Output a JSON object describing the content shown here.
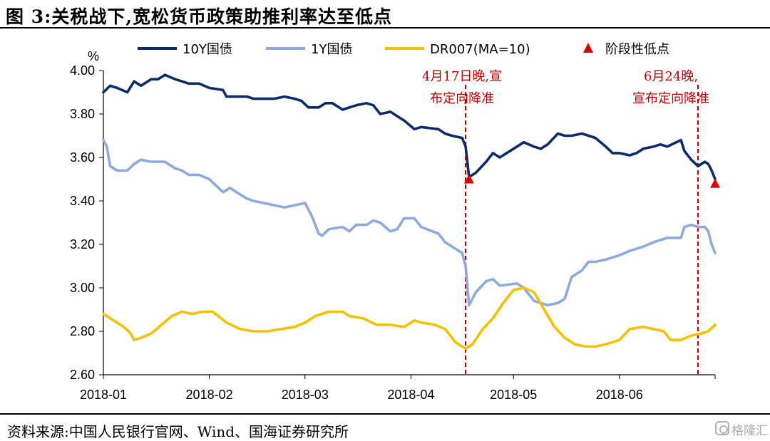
{
  "figure": {
    "title": "图 3:关税战下,宽松货币政策助推利率达至低点",
    "source": "资料来源:中国人民银行官网、Wind、国海证券研究所",
    "watermark": "格隆汇"
  },
  "chart_data": {
    "type": "line",
    "title": "图 3:关税战下,宽松货币政策助推利率达至低点",
    "ylabel": "%",
    "ylim": [
      2.6,
      4.0
    ],
    "yticks": [
      "4.00",
      "3.80",
      "3.60",
      "3.40",
      "3.20",
      "3.00",
      "2.80",
      "2.60"
    ],
    "xlim": [
      "2018-01-01",
      "2018-06-29"
    ],
    "xticks": [
      "2018-01",
      "2018-02",
      "2018-03",
      "2018-04",
      "2018-05",
      "2018-06"
    ],
    "xtick_dates": [
      "2018-01-01",
      "2018-02-01",
      "2018-03-01",
      "2018-04-01",
      "2018-05-01",
      "2018-06-01"
    ],
    "grid": false,
    "legend_position": "top",
    "series": [
      {
        "name": "10Y国债",
        "color": "#0d2a6b",
        "points": [
          [
            "2018-01-01",
            3.9
          ],
          [
            "2018-01-03",
            3.93
          ],
          [
            "2018-01-05",
            3.92
          ],
          [
            "2018-01-08",
            3.9
          ],
          [
            "2018-01-10",
            3.95
          ],
          [
            "2018-01-12",
            3.93
          ],
          [
            "2018-01-15",
            3.96
          ],
          [
            "2018-01-17",
            3.96
          ],
          [
            "2018-01-19",
            3.98
          ],
          [
            "2018-01-22",
            3.96
          ],
          [
            "2018-01-24",
            3.95
          ],
          [
            "2018-01-26",
            3.94
          ],
          [
            "2018-01-29",
            3.94
          ],
          [
            "2018-02-01",
            3.92
          ],
          [
            "2018-02-05",
            3.91
          ],
          [
            "2018-02-06",
            3.88
          ],
          [
            "2018-02-08",
            3.88
          ],
          [
            "2018-02-12",
            3.88
          ],
          [
            "2018-02-14",
            3.87
          ],
          [
            "2018-02-20",
            3.87
          ],
          [
            "2018-02-23",
            3.88
          ],
          [
            "2018-02-26",
            3.87
          ],
          [
            "2018-02-28",
            3.86
          ],
          [
            "2018-03-02",
            3.83
          ],
          [
            "2018-03-05",
            3.83
          ],
          [
            "2018-03-07",
            3.85
          ],
          [
            "2018-03-09",
            3.85
          ],
          [
            "2018-03-12",
            3.82
          ],
          [
            "2018-03-14",
            3.83
          ],
          [
            "2018-03-16",
            3.84
          ],
          [
            "2018-03-19",
            3.85
          ],
          [
            "2018-03-21",
            3.84
          ],
          [
            "2018-03-23",
            3.8
          ],
          [
            "2018-03-26",
            3.81
          ],
          [
            "2018-03-28",
            3.79
          ],
          [
            "2018-03-30",
            3.77
          ],
          [
            "2018-04-02",
            3.73
          ],
          [
            "2018-04-04",
            3.74
          ],
          [
            "2018-04-09",
            3.73
          ],
          [
            "2018-04-11",
            3.71
          ],
          [
            "2018-04-13",
            3.7
          ],
          [
            "2018-04-16",
            3.69
          ],
          [
            "2018-04-17",
            3.65
          ],
          [
            "2018-04-18",
            3.51
          ],
          [
            "2018-04-20",
            3.53
          ],
          [
            "2018-04-23",
            3.58
          ],
          [
            "2018-04-25",
            3.62
          ],
          [
            "2018-04-27",
            3.6
          ],
          [
            "2018-05-02",
            3.65
          ],
          [
            "2018-05-04",
            3.67
          ],
          [
            "2018-05-07",
            3.65
          ],
          [
            "2018-05-09",
            3.64
          ],
          [
            "2018-05-11",
            3.66
          ],
          [
            "2018-05-14",
            3.71
          ],
          [
            "2018-05-16",
            3.7
          ],
          [
            "2018-05-18",
            3.7
          ],
          [
            "2018-05-21",
            3.71
          ],
          [
            "2018-05-23",
            3.7
          ],
          [
            "2018-05-25",
            3.69
          ],
          [
            "2018-05-28",
            3.65
          ],
          [
            "2018-05-30",
            3.62
          ],
          [
            "2018-06-01",
            3.62
          ],
          [
            "2018-06-04",
            3.61
          ],
          [
            "2018-06-06",
            3.62
          ],
          [
            "2018-06-08",
            3.64
          ],
          [
            "2018-06-11",
            3.65
          ],
          [
            "2018-06-13",
            3.66
          ],
          [
            "2018-06-15",
            3.65
          ],
          [
            "2018-06-19",
            3.68
          ],
          [
            "2018-06-20",
            3.63
          ],
          [
            "2018-06-22",
            3.59
          ],
          [
            "2018-06-24",
            3.56
          ],
          [
            "2018-06-26",
            3.58
          ],
          [
            "2018-06-27",
            3.57
          ],
          [
            "2018-06-28",
            3.54
          ],
          [
            "2018-06-29",
            3.5
          ]
        ]
      },
      {
        "name": "1Y国债",
        "color": "#8eaadb",
        "points": [
          [
            "2018-01-01",
            3.68
          ],
          [
            "2018-01-02",
            3.65
          ],
          [
            "2018-01-03",
            3.56
          ],
          [
            "2018-01-05",
            3.54
          ],
          [
            "2018-01-08",
            3.54
          ],
          [
            "2018-01-10",
            3.57
          ],
          [
            "2018-01-12",
            3.59
          ],
          [
            "2018-01-15",
            3.58
          ],
          [
            "2018-01-19",
            3.58
          ],
          [
            "2018-01-22",
            3.55
          ],
          [
            "2018-01-24",
            3.54
          ],
          [
            "2018-01-26",
            3.52
          ],
          [
            "2018-01-29",
            3.52
          ],
          [
            "2018-02-01",
            3.5
          ],
          [
            "2018-02-05",
            3.44
          ],
          [
            "2018-02-07",
            3.46
          ],
          [
            "2018-02-09",
            3.44
          ],
          [
            "2018-02-12",
            3.41
          ],
          [
            "2018-02-14",
            3.4
          ],
          [
            "2018-02-20",
            3.38
          ],
          [
            "2018-02-23",
            3.37
          ],
          [
            "2018-02-26",
            3.38
          ],
          [
            "2018-03-01",
            3.39
          ],
          [
            "2018-03-03",
            3.33
          ],
          [
            "2018-03-05",
            3.25
          ],
          [
            "2018-03-06",
            3.24
          ],
          [
            "2018-03-08",
            3.27
          ],
          [
            "2018-03-12",
            3.28
          ],
          [
            "2018-03-14",
            3.26
          ],
          [
            "2018-03-16",
            3.29
          ],
          [
            "2018-03-19",
            3.29
          ],
          [
            "2018-03-21",
            3.31
          ],
          [
            "2018-03-23",
            3.3
          ],
          [
            "2018-03-26",
            3.26
          ],
          [
            "2018-03-28",
            3.27
          ],
          [
            "2018-03-30",
            3.32
          ],
          [
            "2018-04-02",
            3.32
          ],
          [
            "2018-04-04",
            3.28
          ],
          [
            "2018-04-09",
            3.25
          ],
          [
            "2018-04-11",
            3.21
          ],
          [
            "2018-04-13",
            3.19
          ],
          [
            "2018-04-16",
            3.16
          ],
          [
            "2018-04-17",
            3.1
          ],
          [
            "2018-04-18",
            2.92
          ],
          [
            "2018-04-20",
            2.98
          ],
          [
            "2018-04-23",
            3.03
          ],
          [
            "2018-04-25",
            3.04
          ],
          [
            "2018-04-27",
            3.01
          ],
          [
            "2018-05-02",
            3.02
          ],
          [
            "2018-05-04",
            3.0
          ],
          [
            "2018-05-07",
            2.94
          ],
          [
            "2018-05-09",
            2.93
          ],
          [
            "2018-05-11",
            2.92
          ],
          [
            "2018-05-14",
            2.93
          ],
          [
            "2018-05-16",
            2.95
          ],
          [
            "2018-05-18",
            3.05
          ],
          [
            "2018-05-21",
            3.08
          ],
          [
            "2018-05-23",
            3.12
          ],
          [
            "2018-05-25",
            3.12
          ],
          [
            "2018-05-28",
            3.13
          ],
          [
            "2018-05-30",
            3.14
          ],
          [
            "2018-06-01",
            3.15
          ],
          [
            "2018-06-04",
            3.17
          ],
          [
            "2018-06-06",
            3.18
          ],
          [
            "2018-06-08",
            3.19
          ],
          [
            "2018-06-11",
            3.21
          ],
          [
            "2018-06-13",
            3.22
          ],
          [
            "2018-06-15",
            3.23
          ],
          [
            "2018-06-19",
            3.23
          ],
          [
            "2018-06-20",
            3.28
          ],
          [
            "2018-06-22",
            3.29
          ],
          [
            "2018-06-24",
            3.28
          ],
          [
            "2018-06-26",
            3.28
          ],
          [
            "2018-06-27",
            3.26
          ],
          [
            "2018-06-28",
            3.2
          ],
          [
            "2018-06-29",
            3.16
          ]
        ]
      },
      {
        "name": "DR007(MA=10)",
        "color": "#f5c000",
        "points": [
          [
            "2018-01-01",
            2.88
          ],
          [
            "2018-01-04",
            2.85
          ],
          [
            "2018-01-07",
            2.82
          ],
          [
            "2018-01-09",
            2.79
          ],
          [
            "2018-01-10",
            2.76
          ],
          [
            "2018-01-12",
            2.77
          ],
          [
            "2018-01-15",
            2.79
          ],
          [
            "2018-01-18",
            2.83
          ],
          [
            "2018-01-21",
            2.87
          ],
          [
            "2018-01-24",
            2.89
          ],
          [
            "2018-01-27",
            2.88
          ],
          [
            "2018-01-30",
            2.89
          ],
          [
            "2018-02-02",
            2.89
          ],
          [
            "2018-02-06",
            2.84
          ],
          [
            "2018-02-10",
            2.81
          ],
          [
            "2018-02-14",
            2.8
          ],
          [
            "2018-02-18",
            2.8
          ],
          [
            "2018-02-22",
            2.81
          ],
          [
            "2018-02-26",
            2.82
          ],
          [
            "2018-03-01",
            2.84
          ],
          [
            "2018-03-04",
            2.87
          ],
          [
            "2018-03-08",
            2.89
          ],
          [
            "2018-03-12",
            2.89
          ],
          [
            "2018-03-14",
            2.87
          ],
          [
            "2018-03-18",
            2.86
          ],
          [
            "2018-03-22",
            2.83
          ],
          [
            "2018-03-26",
            2.83
          ],
          [
            "2018-03-30",
            2.82
          ],
          [
            "2018-04-02",
            2.85
          ],
          [
            "2018-04-04",
            2.84
          ],
          [
            "2018-04-08",
            2.83
          ],
          [
            "2018-04-11",
            2.81
          ],
          [
            "2018-04-14",
            2.75
          ],
          [
            "2018-04-17",
            2.72
          ],
          [
            "2018-04-19",
            2.74
          ],
          [
            "2018-04-22",
            2.81
          ],
          [
            "2018-04-25",
            2.86
          ],
          [
            "2018-04-28",
            2.93
          ],
          [
            "2018-05-01",
            2.99
          ],
          [
            "2018-05-04",
            3.0
          ],
          [
            "2018-05-07",
            2.98
          ],
          [
            "2018-05-10",
            2.9
          ],
          [
            "2018-05-13",
            2.82
          ],
          [
            "2018-05-16",
            2.77
          ],
          [
            "2018-05-19",
            2.74
          ],
          [
            "2018-05-22",
            2.73
          ],
          [
            "2018-05-25",
            2.73
          ],
          [
            "2018-05-28",
            2.74
          ],
          [
            "2018-06-01",
            2.76
          ],
          [
            "2018-06-04",
            2.81
          ],
          [
            "2018-06-08",
            2.82
          ],
          [
            "2018-06-11",
            2.81
          ],
          [
            "2018-06-14",
            2.8
          ],
          [
            "2018-06-16",
            2.76
          ],
          [
            "2018-06-19",
            2.76
          ],
          [
            "2018-06-22",
            2.78
          ],
          [
            "2018-06-25",
            2.79
          ],
          [
            "2018-06-27",
            2.8
          ],
          [
            "2018-06-29",
            2.83
          ]
        ]
      }
    ],
    "markers": {
      "name": "阶段性低点",
      "color": "#e00000",
      "shape": "triangle",
      "points": [
        [
          "2018-04-18",
          3.5
        ],
        [
          "2018-06-29",
          3.48
        ]
      ]
    },
    "annotations": [
      {
        "date": "2018-04-17",
        "lines": [
          "4月17日晚,宣",
          "布定向降准"
        ],
        "color": "#c00000"
      },
      {
        "date": "2018-06-24",
        "lines": [
          "6月24晚,",
          "宣布定向降准"
        ],
        "color": "#c00000"
      }
    ]
  }
}
